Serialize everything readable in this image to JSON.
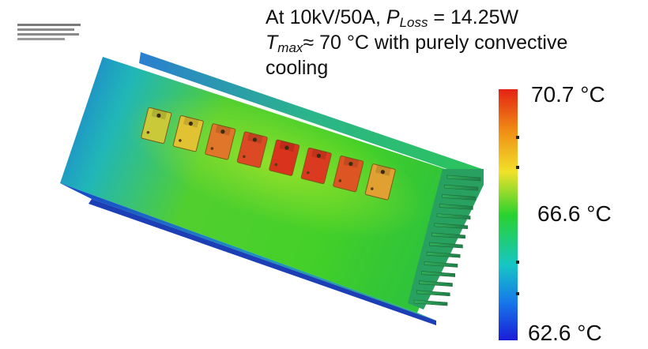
{
  "caption": {
    "line1_prefix": "At 10kV/50A, ",
    "line1_symbol": "P",
    "line1_subscript": "Loss",
    "line1_suffix": " = 14.25W",
    "line2_symbol": "T",
    "line2_subscript": "max",
    "line2_suffix": "≈ 70 °C with purely convective",
    "line3": "cooling"
  },
  "color_scale": {
    "max_label": "70.7 °C",
    "mid_label": "66.6 °C",
    "min_label": "62.6 °C",
    "max_value": 70.7,
    "mid_value": 66.6,
    "min_value": 62.6,
    "unit": "°C",
    "colors": [
      "#e32213",
      "#f08a14",
      "#f1e22a",
      "#2ad22e",
      "#16c6c4",
      "#1677ea",
      "#1a1cd8"
    ]
  },
  "heatsink": {
    "devices": [
      {
        "id": 1,
        "temperature_color": "#c9c93a"
      },
      {
        "id": 2,
        "temperature_color": "#e0c233"
      },
      {
        "id": 3,
        "temperature_color": "#e0762a"
      },
      {
        "id": 4,
        "temperature_color": "#db4a24"
      },
      {
        "id": 5,
        "temperature_color": "#d9321d"
      },
      {
        "id": 6,
        "temperature_color": "#da3a1f"
      },
      {
        "id": 7,
        "temperature_color": "#dc5523"
      },
      {
        "id": 8,
        "temperature_color": "#e0a032"
      }
    ],
    "fin_count": 14
  }
}
